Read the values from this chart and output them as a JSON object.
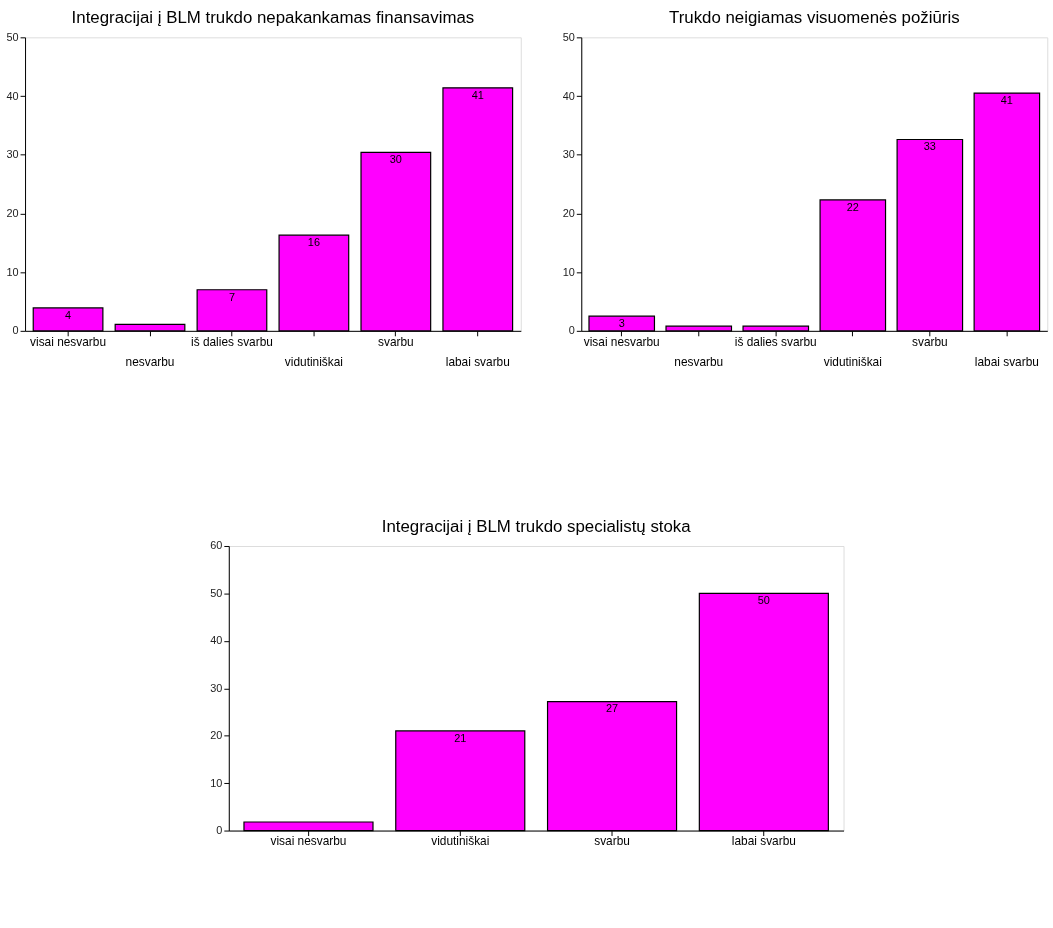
{
  "chart_data": [
    {
      "type": "bar",
      "title": "Integracijai į BLM trukdo nepakankamas finansavimas",
      "categories": [
        "visai nesvarbu",
        "nesvarbu",
        "iš dalies svarbu",
        "vidutiniškai",
        "svarbu",
        "labai svarbu"
      ],
      "values": [
        3.9,
        1.1,
        7.0,
        16.3,
        30.4,
        41.4
      ],
      "value_labels": [
        "4",
        null,
        "7",
        "16",
        "30",
        "41"
      ],
      "color": "#ff00ff",
      "ylim": [
        0,
        50
      ],
      "yticks": [
        0,
        10,
        20,
        30,
        40,
        50
      ],
      "grid": false
    },
    {
      "type": "bar",
      "title": "Trukdo neigiamas visuomenės požiūris",
      "categories": [
        "visai nesvarbu",
        "nesvarbu",
        "iš dalies svarbu",
        "vidutiniškai",
        "svarbu",
        "labai svarbu"
      ],
      "values": [
        2.5,
        0.8,
        0.8,
        22.3,
        32.6,
        40.5
      ],
      "value_labels": [
        "3",
        null,
        null,
        "22",
        "33",
        "41"
      ],
      "color": "#ff00ff",
      "ylim": [
        0,
        50
      ],
      "yticks": [
        0,
        10,
        20,
        30,
        40,
        50
      ],
      "grid": false
    },
    {
      "type": "bar",
      "title": "Integracijai į BLM trukdo specialistų stoka",
      "categories": [
        "visai nesvarbu",
        "vidutiniškai",
        "svarbu",
        "labai svarbu"
      ],
      "values": [
        1.8,
        21.0,
        27.2,
        50.0
      ],
      "value_labels": [
        null,
        "21",
        "27",
        "50"
      ],
      "color": "#ff00ff",
      "ylim": [
        0,
        60
      ],
      "yticks": [
        0,
        10,
        20,
        30,
        40,
        50,
        60
      ],
      "grid": false
    }
  ]
}
